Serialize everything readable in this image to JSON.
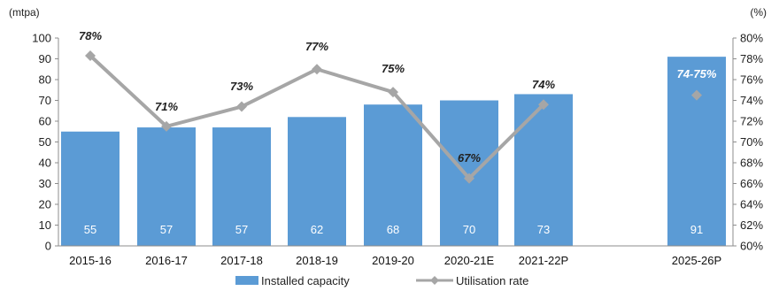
{
  "chart_data": {
    "type": "bar",
    "left_unit": "(mtpa)",
    "right_unit": "(%)",
    "categories": [
      "2015-16",
      "2016-17",
      "2017-18",
      "2018-19",
      "2019-20",
      "2020-21E",
      "2021-22P",
      "2025-26P"
    ],
    "series": [
      {
        "name": "Installed capacity",
        "type": "bar",
        "axis": "left",
        "color": "#5B9BD5",
        "values": [
          55,
          57,
          57,
          62,
          68,
          70,
          73,
          91
        ],
        "labels": [
          "55",
          "57",
          "57",
          "62",
          "68",
          "70",
          "73",
          "91"
        ]
      },
      {
        "name": "Utilisation rate",
        "type": "line",
        "axis": "right",
        "color": "#A6A6A6",
        "values": [
          78.3,
          71.5,
          73.4,
          77.0,
          74.8,
          66.5,
          73.6,
          74.5
        ],
        "labels": [
          "78%",
          "71%",
          "73%",
          "77%",
          "75%",
          "67%",
          "74%",
          "74-75%"
        ],
        "connected_points": 7
      }
    ],
    "ylim_left": [
      0,
      100
    ],
    "yticks_left": [
      "0",
      "10",
      "20",
      "30",
      "40",
      "50",
      "60",
      "70",
      "80",
      "90",
      "100"
    ],
    "ylim_right": [
      60,
      80
    ],
    "yticks_right": [
      "60%",
      "62%",
      "64%",
      "66%",
      "68%",
      "70%",
      "72%",
      "74%",
      "76%",
      "78%",
      "80%"
    ],
    "legend_position": "bottom",
    "grid": false
  }
}
